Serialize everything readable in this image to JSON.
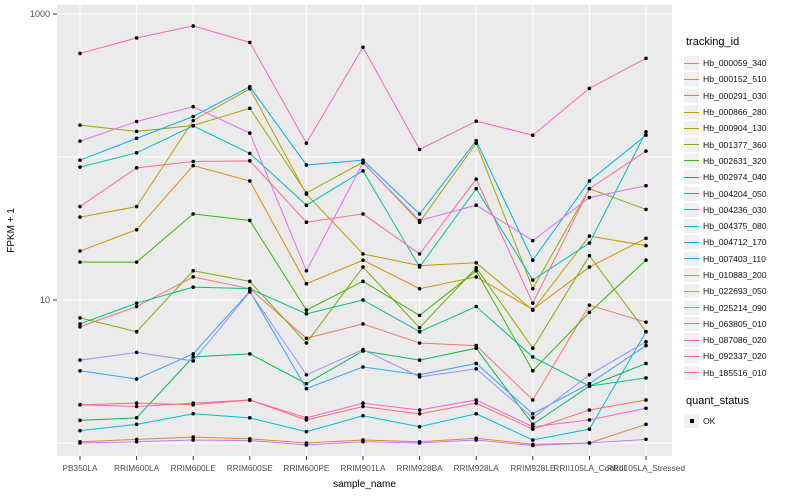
{
  "figure": {
    "bg": "#FFFFFF",
    "panel_bg": "#EBEBEB",
    "grid_color": "#FFFFFF",
    "tick_color": "#333333",
    "marker_color": "#000000"
  },
  "legend": {
    "tracking_title": "tracking_id",
    "quant_title": "quant_status",
    "quant_value": "OK"
  },
  "chart_data": {
    "type": "line",
    "title": "",
    "xlabel": "sample_name",
    "ylabel": "FPKM + 1",
    "y_scale": "log10",
    "y_tick_labels": [
      "1000",
      "10"
    ],
    "y_tick_values": [
      1000,
      10
    ],
    "y_gridline_values": [
      1,
      10,
      100,
      1000
    ],
    "ylim": [
      0.82,
      1150
    ],
    "grid": true,
    "legend_position": "right",
    "marker": "point",
    "categories": [
      "PB350LA",
      "RRIM600LA",
      "RRIM600LE",
      "RRIM600SE",
      "RRIM600PE",
      "RRIM901LA",
      "RRIM928BA",
      "RRIM928LA",
      "RRIM928LE",
      "RRII105LA_Control",
      "RRII105LA_Stressed"
    ],
    "series": [
      {
        "name": "Hb_000059_340",
        "color": "#F8766D",
        "values": [
          6.5,
          9.0,
          14.5,
          12.0,
          5.4,
          6.8,
          5.0,
          4.8,
          2.0,
          9.2,
          7.0
        ]
      },
      {
        "name": "Hb_000152_510",
        "color": "#EA8331",
        "values": [
          1.02,
          1.06,
          1.1,
          1.07,
          1.0,
          1.05,
          1.02,
          1.08,
          0.98,
          1.0,
          1.35
        ]
      },
      {
        "name": "Hb_000291_030",
        "color": "#D89000",
        "values": [
          22,
          31,
          87,
          68,
          13,
          19,
          12,
          14.5,
          8.6,
          17,
          27
        ]
      },
      {
        "name": "Hb_000866_280",
        "color": "#C09B00",
        "values": [
          38,
          45,
          180,
          300,
          55,
          21,
          17.4,
          18.2,
          8.5,
          28,
          24
        ]
      },
      {
        "name": "Hb_000904_130",
        "color": "#A3A500",
        "values": [
          167,
          151,
          166,
          219,
          56,
          92,
          35,
          125,
          12,
          60,
          43
        ]
      },
      {
        "name": "Hb_001377_360",
        "color": "#7CAE00",
        "values": [
          7.5,
          6.0,
          16,
          13.5,
          5.0,
          17,
          6.4,
          16.8,
          4.6,
          20.4,
          6.0
        ]
      },
      {
        "name": "Hb_002631_320",
        "color": "#39B600",
        "values": [
          18.4,
          18.4,
          40,
          36,
          8.5,
          13.5,
          7.8,
          16,
          3.2,
          8.2,
          19
        ]
      },
      {
        "name": "Hb_002974_040",
        "color": "#00BB4E",
        "values": [
          1.44,
          1.5,
          4.0,
          4.2,
          2.6,
          4.4,
          3.8,
          4.6,
          1.35,
          2.5,
          3.6
        ]
      },
      {
        "name": "Hb_004204_050",
        "color": "#00C087",
        "values": [
          6.8,
          9.5,
          12.3,
          12.0,
          8.0,
          10.0,
          6.0,
          9.0,
          4.0,
          2.5,
          2.85
        ]
      },
      {
        "name": "Hb_004236_030",
        "color": "#00C0AF",
        "values": [
          85,
          107,
          165,
          106,
          46,
          80,
          17,
          60,
          13.8,
          25,
          150
        ]
      },
      {
        "name": "Hb_004375_080",
        "color": "#00BCD8",
        "values": [
          1.22,
          1.35,
          1.6,
          1.5,
          1.2,
          1.55,
          1.3,
          1.6,
          1.05,
          1.25,
          6.0
        ]
      },
      {
        "name": "Hb_004712_170",
        "color": "#00B0F6",
        "values": [
          95,
          135,
          192,
          310,
          88,
          95,
          40,
          130,
          19,
          68,
          142
        ]
      },
      {
        "name": "Hb_007403_110",
        "color": "#35A2FF",
        "values": [
          3.2,
          2.8,
          4.2,
          11.5,
          2.4,
          3.4,
          3.0,
          3.6,
          1.6,
          2.6,
          4.8
        ]
      },
      {
        "name": "Hb_010883_200",
        "color": "#9590FF",
        "values": [
          3.8,
          4.3,
          3.75,
          11.4,
          3.0,
          4.5,
          2.9,
          3.3,
          1.5,
          3.0,
          5.1
        ]
      },
      {
        "name": "Hb_022693_050",
        "color": "#BC81FF",
        "values": [
          1.0,
          1.02,
          1.05,
          1.04,
          0.97,
          1.02,
          1.0,
          1.05,
          0.96,
          1.0,
          1.06
        ]
      },
      {
        "name": "Hb_025214_090",
        "color": "#E76BF3",
        "values": [
          129,
          177,
          225,
          147,
          16,
          91,
          36,
          46,
          26,
          52,
          63
        ]
      },
      {
        "name": "Hb_063805_010",
        "color": "#FD61D1",
        "values": [
          1.85,
          1.8,
          1.9,
          2.0,
          1.5,
          1.9,
          1.7,
          2.0,
          1.3,
          1.45,
          1.75
        ]
      },
      {
        "name": "Hb_087086_020",
        "color": "#FF62BC",
        "values": [
          530,
          680,
          825,
          633,
          125,
          585,
          113,
          178,
          142,
          302,
          490
        ]
      },
      {
        "name": "Hb_092337_020",
        "color": "#FF6A98",
        "values": [
          45,
          84,
          93,
          94,
          35,
          40,
          21,
          70,
          9.5,
          60,
          110
        ]
      },
      {
        "name": "Hb_185516_010",
        "color": "#FF6C67",
        "values": [
          1.85,
          1.9,
          1.85,
          2.0,
          1.45,
          1.8,
          1.6,
          1.9,
          1.25,
          1.7,
          2.0
        ]
      }
    ]
  }
}
